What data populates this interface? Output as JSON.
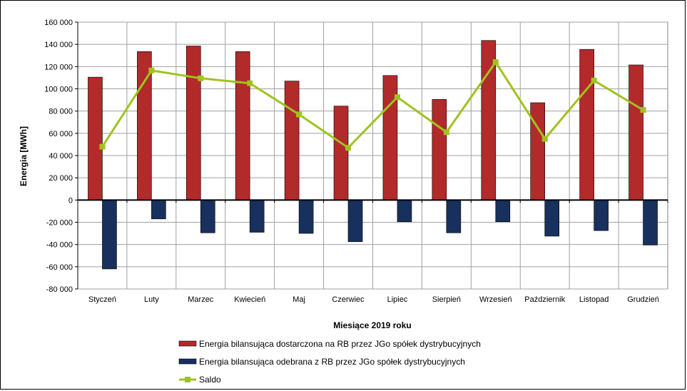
{
  "chart_data": {
    "type": "bar",
    "xlabel": "Miesiące 2019  roku",
    "ylabel": "Energia [MWh]",
    "ylim": [
      -80000,
      160000
    ],
    "ytick_step": 20000,
    "ytick_labels": [
      "160 000",
      "140 000",
      "120 000",
      "100 000",
      "80 000",
      "60 000",
      "40 000",
      "20 000",
      "0",
      "-20 000",
      "-40 000",
      "-60 000",
      "-80 000"
    ],
    "grid": true,
    "legend_position": "bottom",
    "categories": [
      "Styczeń",
      "Luty",
      "Marzec",
      "Kwiecień",
      "Maj",
      "Czerwiec",
      "Lipiec",
      "Sierpień",
      "Wrzesień",
      "Październik",
      "Listopad",
      "Grudzień"
    ],
    "series": [
      {
        "name": "Energia bilansująca dostarczona na RB przez JGo spółek dystrybucyjnych",
        "type": "bar",
        "color": "#b22a2a",
        "values": [
          110500,
          133500,
          138500,
          133500,
          107000,
          84500,
          112000,
          90500,
          143500,
          87500,
          135500,
          121500
        ]
      },
      {
        "name": "Energia bilansująca odebrana z RB przez JGo spółek dystrybucyjnych",
        "type": "bar",
        "color": "#17305e",
        "values": [
          -62000,
          -17000,
          -29500,
          -29000,
          -30000,
          -37500,
          -19500,
          -29500,
          -19500,
          -32500,
          -27500,
          -40500
        ]
      },
      {
        "name": "Saldo",
        "type": "line",
        "color": "#9fc31e",
        "values": [
          48000,
          116500,
          109500,
          105000,
          77000,
          47000,
          92500,
          61000,
          124000,
          55000,
          107500,
          81000
        ]
      }
    ]
  }
}
